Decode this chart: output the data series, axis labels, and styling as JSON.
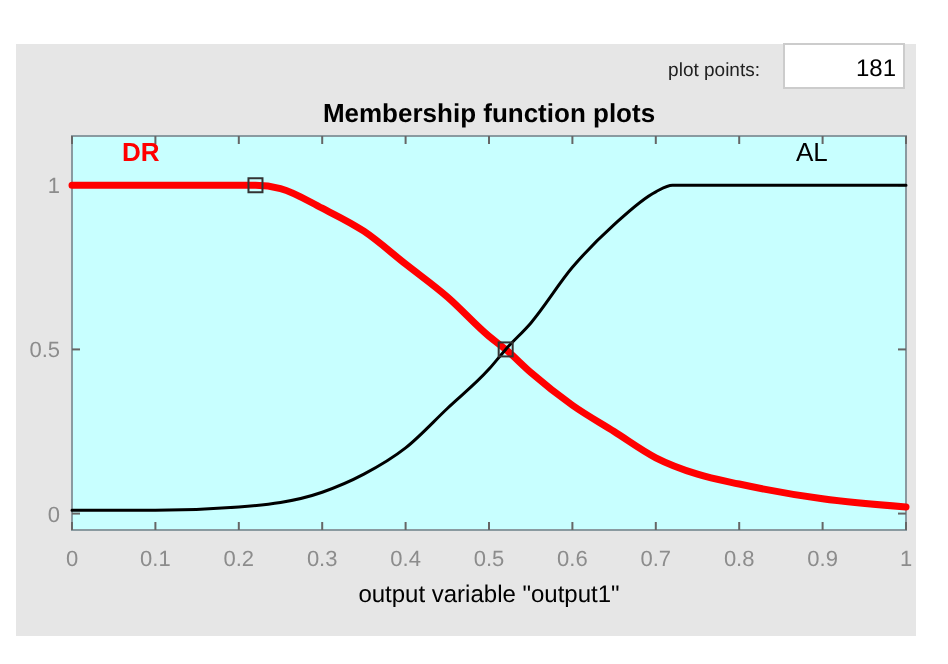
{
  "chart_data": {
    "type": "line",
    "title": "Membership function plots",
    "xlabel": "output variable \"output1\"",
    "xlim": [
      0,
      1
    ],
    "xticks": [
      0,
      0.1,
      0.2,
      0.3,
      0.4,
      0.5,
      0.6,
      0.7,
      0.8,
      0.9,
      1
    ],
    "ylim": [
      -0.05,
      1.15
    ],
    "yticks": [
      0,
      0.5,
      1
    ],
    "grid": false,
    "series": [
      {
        "name": "DR",
        "color": "#ff0000",
        "x": [
          0,
          0.1,
          0.22,
          0.25,
          0.3,
          0.35,
          0.4,
          0.45,
          0.5,
          0.52,
          0.55,
          0.6,
          0.65,
          0.7,
          0.75,
          0.8,
          0.9,
          1
        ],
        "values": [
          1,
          1,
          1,
          0.99,
          0.93,
          0.86,
          0.76,
          0.66,
          0.54,
          0.5,
          0.43,
          0.33,
          0.25,
          0.17,
          0.12,
          0.09,
          0.045,
          0.02
        ]
      },
      {
        "name": "AL",
        "color": "#000000",
        "x": [
          0,
          0.1,
          0.2,
          0.3,
          0.35,
          0.4,
          0.45,
          0.5,
          0.52,
          0.55,
          0.6,
          0.65,
          0.7,
          0.72,
          0.8,
          0.9,
          1
        ],
        "values": [
          0.01,
          0.01,
          0.02,
          0.065,
          0.12,
          0.2,
          0.32,
          0.44,
          0.5,
          0.58,
          0.75,
          0.88,
          0.98,
          1,
          1,
          1,
          1
        ]
      },
      {
        "type": "scatter",
        "marker": "square",
        "color": "#333333",
        "x": [
          0.22,
          0.52
        ],
        "values": [
          1,
          0.5
        ]
      }
    ],
    "annotations": [
      "plot points:",
      "181"
    ]
  }
}
